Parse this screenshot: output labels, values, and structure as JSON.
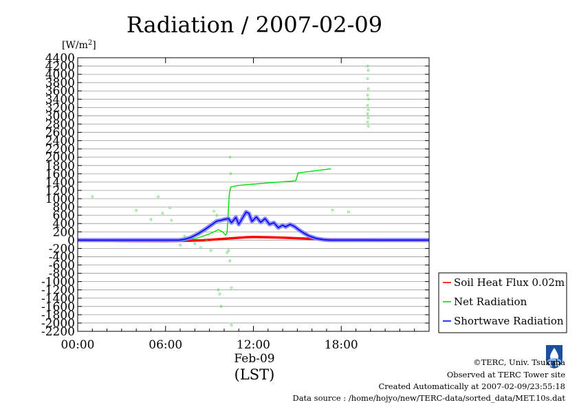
{
  "chart_data": {
    "type": "line",
    "title": "Radiation / 2007-02-09",
    "ylabel": "[W/m²]",
    "ylim": [
      -2200,
      4400
    ],
    "ytick_step": 200,
    "xlim": [
      0,
      24
    ],
    "xticks": [
      {
        "hour": 0,
        "label": "00:00"
      },
      {
        "hour": 6,
        "label": "06:00"
      },
      {
        "hour": 12,
        "label": "12:00"
      },
      {
        "hour": 18,
        "label": "18:00"
      }
    ],
    "xlabel_date": "Feb-09",
    "xlabel": "(LST)",
    "grid": true,
    "legend_position": "right",
    "series": [
      {
        "name": "Soil Heat Flux 0.02m",
        "color": "#ff0000",
        "style": "line",
        "points": [
          [
            0,
            0
          ],
          [
            3,
            -20
          ],
          [
            6,
            -25
          ],
          [
            7.5,
            -15
          ],
          [
            8.5,
            -5
          ],
          [
            9.5,
            20
          ],
          [
            10.5,
            45
          ],
          [
            11.5,
            70
          ],
          [
            12,
            75
          ],
          [
            13,
            70
          ],
          [
            14,
            60
          ],
          [
            15,
            45
          ],
          [
            16,
            30
          ],
          [
            17,
            15
          ],
          [
            18,
            8
          ],
          [
            20,
            5
          ],
          [
            22,
            3
          ],
          [
            24,
            0
          ]
        ]
      },
      {
        "name": "Net Radiation",
        "color": "#00dd00",
        "style": "line",
        "points": [
          [
            0,
            0
          ],
          [
            5,
            -10
          ],
          [
            7,
            -5
          ],
          [
            8,
            30
          ],
          [
            9,
            150
          ],
          [
            9.6,
            250
          ],
          [
            9.9,
            200
          ],
          [
            10.1,
            120
          ],
          [
            10.2,
            180
          ],
          [
            10.35,
            1100
          ],
          [
            10.45,
            1280
          ],
          [
            11,
            1320
          ],
          [
            13,
            1380
          ],
          [
            14.9,
            1430
          ],
          [
            15.05,
            1620
          ],
          [
            17.3,
            1720
          ]
        ]
      },
      {
        "name": "Shortwave Radiation",
        "color": "#0000ff",
        "style": "band",
        "points": [
          [
            0,
            0
          ],
          [
            6.9,
            0
          ],
          [
            7.3,
            20
          ],
          [
            7.7,
            60
          ],
          [
            8.2,
            150
          ],
          [
            8.7,
            260
          ],
          [
            9.1,
            360
          ],
          [
            9.5,
            460
          ],
          [
            9.8,
            480
          ],
          [
            10,
            500
          ],
          [
            10.3,
            520
          ],
          [
            10.5,
            420
          ],
          [
            10.8,
            550
          ],
          [
            11,
            380
          ],
          [
            11.3,
            560
          ],
          [
            11.5,
            680
          ],
          [
            11.7,
            640
          ],
          [
            11.9,
            450
          ],
          [
            12.2,
            560
          ],
          [
            12.5,
            430
          ],
          [
            12.8,
            520
          ],
          [
            13.1,
            380
          ],
          [
            13.4,
            420
          ],
          [
            13.7,
            300
          ],
          [
            14,
            360
          ],
          [
            14.2,
            320
          ],
          [
            14.5,
            380
          ],
          [
            14.8,
            330
          ],
          [
            15.1,
            250
          ],
          [
            15.4,
            180
          ],
          [
            15.8,
            100
          ],
          [
            16.3,
            40
          ],
          [
            16.8,
            10
          ],
          [
            17.2,
            0
          ],
          [
            24,
            0
          ]
        ]
      },
      {
        "name": "Net Radiation scattered samples",
        "color": "#66dd66",
        "style": "scatter",
        "points": [
          [
            1,
            1050
          ],
          [
            4,
            720
          ],
          [
            5,
            500
          ],
          [
            5.5,
            1050
          ],
          [
            5.8,
            650
          ],
          [
            6.3,
            780
          ],
          [
            6.4,
            480
          ],
          [
            7,
            -120
          ],
          [
            7.3,
            100
          ],
          [
            8,
            -80
          ],
          [
            8.4,
            -180
          ],
          [
            8.8,
            -20
          ],
          [
            9.1,
            -250
          ],
          [
            9.3,
            700
          ],
          [
            9.5,
            600
          ],
          [
            9.6,
            -1200
          ],
          [
            9.7,
            -1300
          ],
          [
            9.8,
            -1600
          ],
          [
            10.2,
            -300
          ],
          [
            10.3,
            -250
          ],
          [
            10.4,
            -500
          ],
          [
            10.4,
            2000
          ],
          [
            10.45,
            1600
          ],
          [
            10.5,
            -1150
          ],
          [
            10.5,
            -2050
          ],
          [
            17.4,
            730
          ],
          [
            18.5,
            680
          ],
          [
            19.8,
            4200
          ],
          [
            19.85,
            4100
          ],
          [
            19.8,
            3900
          ],
          [
            19.85,
            3650
          ],
          [
            19.8,
            3500
          ],
          [
            19.85,
            3400
          ],
          [
            19.8,
            3250
          ],
          [
            19.85,
            3150
          ],
          [
            19.8,
            3050
          ],
          [
            19.85,
            2950
          ],
          [
            19.8,
            2850
          ],
          [
            19.85,
            2750
          ]
        ]
      }
    ]
  },
  "legend": [
    {
      "label": "Soil Heat Flux 0.02m",
      "color": "#ff0000"
    },
    {
      "label": "Net Radiation",
      "color": "#00dd00"
    },
    {
      "label": "Shortwave Radiation",
      "color": "#0000ff"
    }
  ],
  "footer": {
    "credit": "©TERC, Univ. Tsukuba",
    "observed": "Observed at TERC Tower site",
    "created": "Created Automatically at 2007-02-09/23:55:18",
    "source": "Data source : /home/hojyo/new/TERC-data/sorted_data/MET.10s.dat",
    "logo_text": "T E R C"
  }
}
